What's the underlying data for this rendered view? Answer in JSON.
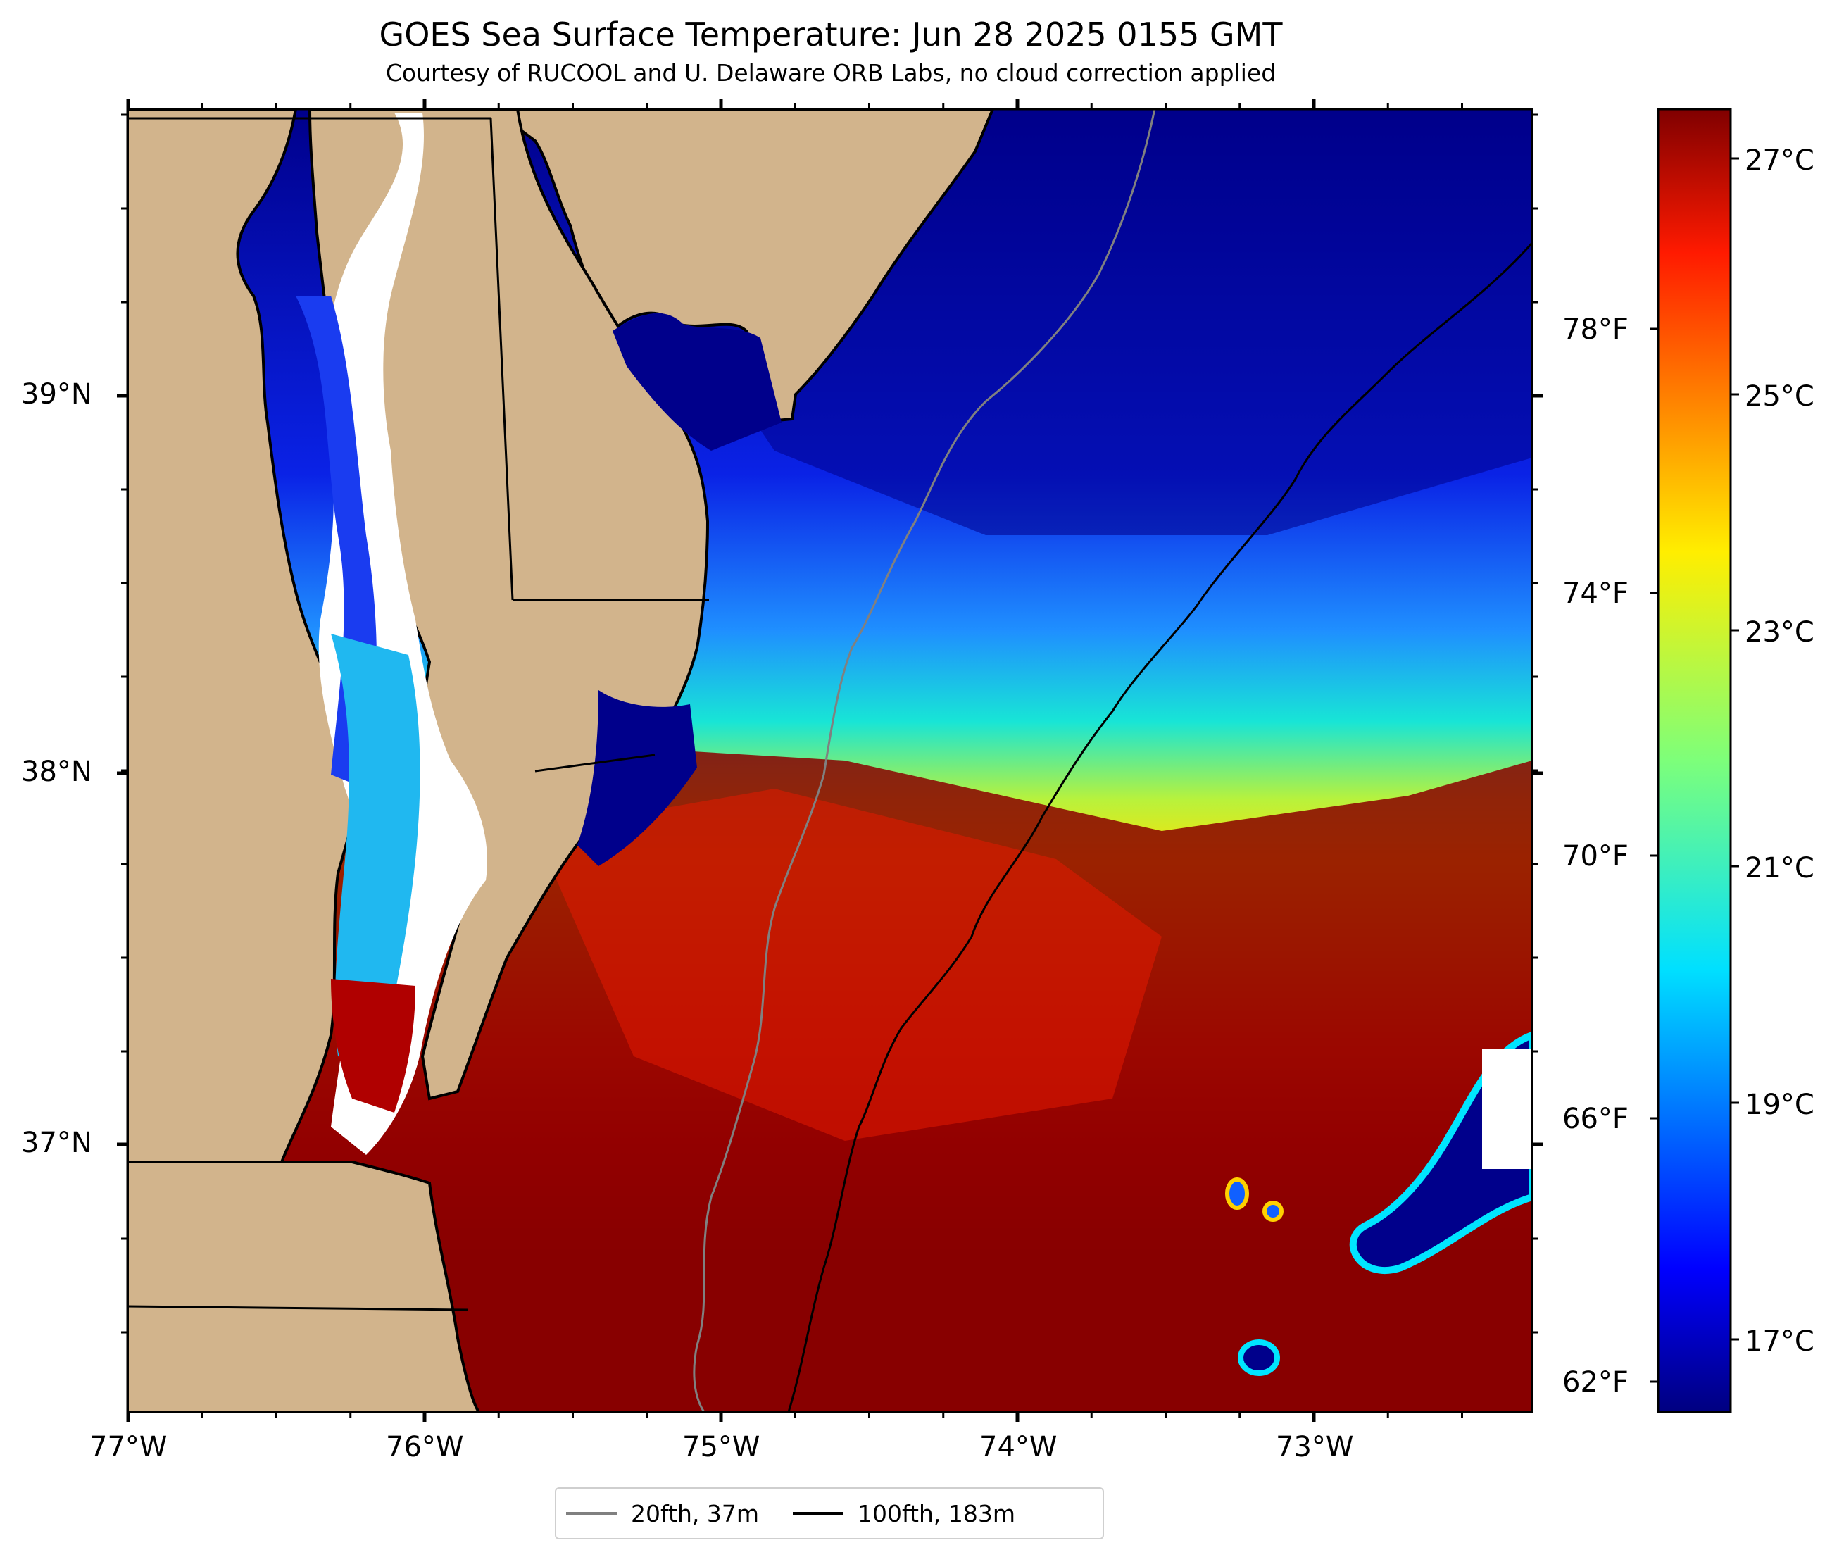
{
  "title": "GOES Sea Surface Temperature: Jun 28 2025 0155 GMT",
  "subtitle": "Courtesy of RUCOOL and U. Delaware ORB Labs, no cloud correction applied",
  "axes": {
    "x_ticks": [
      "77°W",
      "76°W",
      "75°W",
      "74°W",
      "73°W"
    ],
    "y_ticks": [
      "39°N",
      "38°N",
      "37°N"
    ]
  },
  "colorbar": {
    "colormap": "jet",
    "celsius_ticks": [
      "27°C",
      "25°C",
      "23°C",
      "21°C",
      "19°C",
      "17°C"
    ],
    "fahrenheit_ticks": [
      "78°F",
      "74°F",
      "70°F",
      "66°F",
      "62°F"
    ]
  },
  "legend": [
    {
      "label": "20fth, 37m",
      "color": "#808080"
    },
    {
      "label": "100fth, 183m",
      "color": "#000000"
    }
  ],
  "colors": {
    "land": "#d2b48c",
    "coast": "#000000",
    "no_data": "#ffffff"
  }
}
